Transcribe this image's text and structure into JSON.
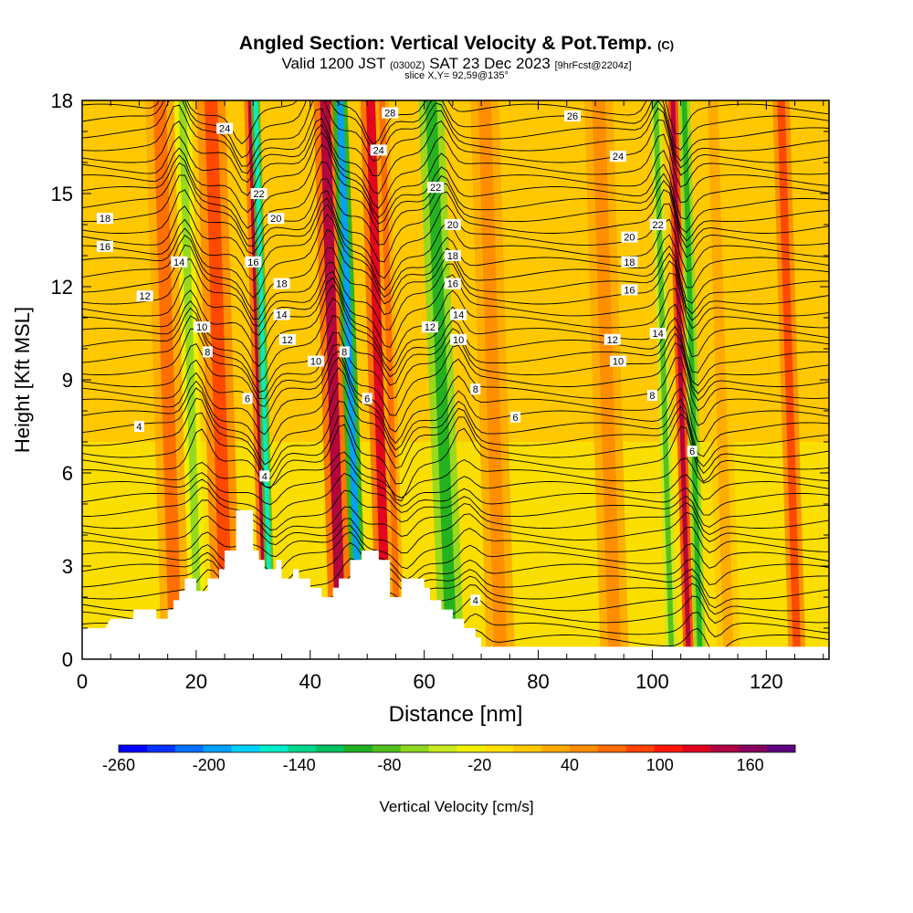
{
  "title": {
    "main": "Angled Section: Vertical Velocity & Pot.Temp.",
    "copyright": "(C)",
    "valid_prefix": "Valid 1200 JST",
    "utc": "(0300Z)",
    "date": "SAT 23 Dec 2023",
    "forecast": "[9hrFcst@2204z]",
    "slice": "slice X,Y= 92,59@135°"
  },
  "chart_data": {
    "type": "heatmap",
    "xlabel": "Distance [nm]",
    "ylabel": "Height [Kft MSL]",
    "xlim": [
      0,
      131
    ],
    "ylim": [
      0,
      18
    ],
    "x_ticks": [
      0,
      20,
      40,
      60,
      80,
      100,
      120
    ],
    "y_ticks": [
      0,
      3,
      6,
      9,
      12,
      15,
      18
    ],
    "colorbar": {
      "label": "Vertical Velocity [cm/s]",
      "range": [
        -260,
        190
      ],
      "tick_labels": [
        -260,
        -200,
        -140,
        -80,
        -20,
        40,
        100,
        160
      ],
      "colors": [
        "#0000ff",
        "#0033ff",
        "#0070ff",
        "#00a0ff",
        "#00d0ff",
        "#00eecc",
        "#00d890",
        "#00c060",
        "#20b020",
        "#50c020",
        "#90d820",
        "#c8e820",
        "#f0f000",
        "#ffe000",
        "#ffc800",
        "#ffaa00",
        "#ff8c00",
        "#ff6c00",
        "#ff4400",
        "#ff1800",
        "#e00020",
        "#b00040",
        "#880060",
        "#600080"
      ]
    },
    "velocity_bands": [
      {
        "x": 15,
        "w": 2.5,
        "v": 60
      },
      {
        "x": 19,
        "w": 1.5,
        "v": -60
      },
      {
        "x": 24,
        "w": 2.5,
        "v": 80
      },
      {
        "x": 31,
        "w": 1.2,
        "v": 140
      },
      {
        "x": 31.8,
        "w": 0.8,
        "v": -160
      },
      {
        "x": 44,
        "w": 2.0,
        "v": 140
      },
      {
        "x": 47,
        "w": 1.3,
        "v": -200
      },
      {
        "x": 52,
        "w": 1.8,
        "v": 120
      },
      {
        "x": 54,
        "w": 1.2,
        "v": 60
      },
      {
        "x": 63,
        "w": 2.2,
        "v": -100
      },
      {
        "x": 72,
        "w": 2.5,
        "v": 40
      },
      {
        "x": 92,
        "w": 2.5,
        "v": 40
      },
      {
        "x": 102,
        "w": 1.0,
        "v": -90
      },
      {
        "x": 105,
        "w": 0.9,
        "v": 150
      },
      {
        "x": 107,
        "w": 1.0,
        "v": -100
      },
      {
        "x": 112,
        "w": 2.0,
        "v": 30
      },
      {
        "x": 124,
        "w": 1.5,
        "v": 80
      }
    ],
    "terrain": [
      [
        0,
        1
      ],
      [
        4,
        1
      ],
      [
        5,
        1.3
      ],
      [
        9,
        1.3
      ],
      [
        9,
        1.6
      ],
      [
        13,
        1.6
      ],
      [
        13,
        1.3
      ],
      [
        15,
        1.3
      ],
      [
        15,
        1.6
      ],
      [
        16,
        1.6
      ],
      [
        16,
        1.9
      ],
      [
        17,
        1.9
      ],
      [
        17,
        2.2
      ],
      [
        18,
        2.2
      ],
      [
        18,
        2.6
      ],
      [
        20,
        2.6
      ],
      [
        20,
        2.2
      ],
      [
        22,
        2.2
      ],
      [
        22,
        2.6
      ],
      [
        24,
        2.6
      ],
      [
        24,
        2.9
      ],
      [
        25,
        2.9
      ],
      [
        25,
        3.5
      ],
      [
        27,
        3.5
      ],
      [
        27,
        4.8
      ],
      [
        30,
        4.8
      ],
      [
        30,
        3.5
      ],
      [
        31,
        3.5
      ],
      [
        31,
        3.2
      ],
      [
        32,
        3.2
      ],
      [
        32,
        2.9
      ],
      [
        34,
        2.9
      ],
      [
        34,
        3.2
      ],
      [
        35,
        3.2
      ],
      [
        35,
        2.6
      ],
      [
        37,
        2.6
      ],
      [
        37,
        2.9
      ],
      [
        38,
        2.9
      ],
      [
        38,
        2.6
      ],
      [
        40,
        2.6
      ],
      [
        40,
        2.3
      ],
      [
        42,
        2.3
      ],
      [
        42,
        2.0
      ],
      [
        44,
        2.0
      ],
      [
        44,
        2.3
      ],
      [
        45,
        2.3
      ],
      [
        45,
        2.6
      ],
      [
        47,
        2.6
      ],
      [
        47,
        3.2
      ],
      [
        49,
        3.2
      ],
      [
        49,
        3.5
      ],
      [
        52,
        3.5
      ],
      [
        52,
        3.2
      ],
      [
        54,
        3.2
      ],
      [
        54,
        2.0
      ],
      [
        56,
        2.0
      ],
      [
        56,
        2.6
      ],
      [
        60,
        2.6
      ],
      [
        60,
        2.3
      ],
      [
        61,
        2.3
      ],
      [
        61,
        1.9
      ],
      [
        63,
        1.9
      ],
      [
        63,
        1.6
      ],
      [
        65,
        1.6
      ],
      [
        65,
        1.3
      ],
      [
        67,
        1.3
      ],
      [
        67,
        1.0
      ],
      [
        69,
        1.0
      ],
      [
        69,
        0.7
      ],
      [
        70,
        0.7
      ],
      [
        70,
        0.4
      ],
      [
        72,
        0.4
      ],
      [
        131,
        0.4
      ]
    ],
    "contour_labels": [
      {
        "x": 25,
        "y": 17.1,
        "t": "24"
      },
      {
        "x": 54,
        "y": 17.6,
        "t": "28"
      },
      {
        "x": 86,
        "y": 17.5,
        "t": "26"
      },
      {
        "x": 4,
        "y": 14.2,
        "t": "18"
      },
      {
        "x": 31,
        "y": 15.0,
        "t": "22"
      },
      {
        "x": 52,
        "y": 16.4,
        "t": "24"
      },
      {
        "x": 62,
        "y": 15.2,
        "t": "22"
      },
      {
        "x": 94,
        "y": 16.2,
        "t": "24"
      },
      {
        "x": 4,
        "y": 13.3,
        "t": "16"
      },
      {
        "x": 34,
        "y": 14.2,
        "t": "20"
      },
      {
        "x": 65,
        "y": 14.0,
        "t": "20"
      },
      {
        "x": 101,
        "y": 14.0,
        "t": "22"
      },
      {
        "x": 17,
        "y": 12.8,
        "t": "14"
      },
      {
        "x": 30,
        "y": 12.8,
        "t": "16"
      },
      {
        "x": 65,
        "y": 13.0,
        "t": "18"
      },
      {
        "x": 96,
        "y": 13.6,
        "t": "20"
      },
      {
        "x": 11,
        "y": 11.7,
        "t": "12"
      },
      {
        "x": 35,
        "y": 12.1,
        "t": "18"
      },
      {
        "x": 65,
        "y": 12.1,
        "t": "16"
      },
      {
        "x": 96,
        "y": 12.8,
        "t": "18"
      },
      {
        "x": 96,
        "y": 11.9,
        "t": "16"
      },
      {
        "x": 35,
        "y": 11.1,
        "t": "14"
      },
      {
        "x": 66,
        "y": 11.1,
        "t": "14"
      },
      {
        "x": 21,
        "y": 10.7,
        "t": "10"
      },
      {
        "x": 61,
        "y": 10.7,
        "t": "12"
      },
      {
        "x": 101,
        "y": 10.5,
        "t": "14"
      },
      {
        "x": 36,
        "y": 10.3,
        "t": "12"
      },
      {
        "x": 66,
        "y": 10.3,
        "t": "10"
      },
      {
        "x": 93,
        "y": 10.3,
        "t": "12"
      },
      {
        "x": 22,
        "y": 9.9,
        "t": "8"
      },
      {
        "x": 46,
        "y": 9.9,
        "t": "8"
      },
      {
        "x": 41,
        "y": 9.6,
        "t": "10"
      },
      {
        "x": 94,
        "y": 9.6,
        "t": "10"
      },
      {
        "x": 69,
        "y": 8.7,
        "t": "8"
      },
      {
        "x": 29,
        "y": 8.4,
        "t": "6"
      },
      {
        "x": 50,
        "y": 8.4,
        "t": "6"
      },
      {
        "x": 100,
        "y": 8.5,
        "t": "8"
      },
      {
        "x": 76,
        "y": 7.8,
        "t": "6"
      },
      {
        "x": 10,
        "y": 7.5,
        "t": "4"
      },
      {
        "x": 107,
        "y": 6.7,
        "t": "6"
      },
      {
        "x": 32,
        "y": 5.9,
        "t": "4"
      },
      {
        "x": 69,
        "y": 1.9,
        "t": "4"
      }
    ]
  }
}
